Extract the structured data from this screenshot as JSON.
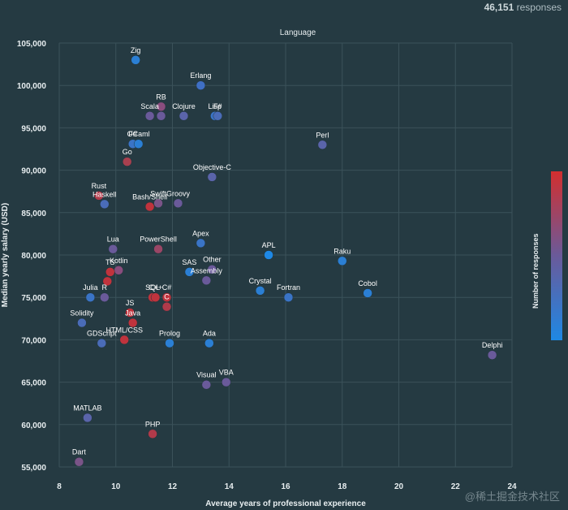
{
  "header": {
    "responses_count": "46,151",
    "responses_label": "responses"
  },
  "watermark": "@稀土掘金技术社区",
  "chart_data": {
    "type": "scatter",
    "title": "Language",
    "xlabel": "Average years of professional experience",
    "ylabel": "Median yearly salary (USD)",
    "xlim": [
      8,
      24
    ],
    "ylim": [
      55000,
      105000
    ],
    "x_ticks": [
      8,
      10,
      12,
      14,
      16,
      18,
      20,
      22,
      24
    ],
    "y_ticks": [
      55000,
      60000,
      65000,
      70000,
      75000,
      80000,
      85000,
      90000,
      95000,
      100000,
      105000
    ],
    "y_tick_labels": [
      "55,000",
      "60,000",
      "65,000",
      "70,000",
      "75,000",
      "80,000",
      "85,000",
      "90,000",
      "95,000",
      "100,000",
      "105,000"
    ],
    "grid": true,
    "colorbar": {
      "label": "Number of responses",
      "low_color": "#1e88e5",
      "high_color": "#d32f2f"
    },
    "points": [
      {
        "label": "Zig",
        "x": 10.7,
        "y": 103000,
        "color": "#2b7fd4"
      },
      {
        "label": "Erlang",
        "x": 13.0,
        "y": 100000,
        "color": "#3f6fc4"
      },
      {
        "label": "RB",
        "x": 11.6,
        "y": 97500,
        "color": "#8a4d7e"
      },
      {
        "label": "Scala",
        "x": 11.2,
        "y": 96400,
        "color": "#6a5a9a"
      },
      {
        "label": "",
        "x": 11.6,
        "y": 96400,
        "color": "#6a5a9a"
      },
      {
        "label": "Clojure",
        "x": 12.4,
        "y": 96400,
        "color": "#5a64aa"
      },
      {
        "label": "Lisp",
        "x": 13.5,
        "y": 96400,
        "color": "#3a74c6"
      },
      {
        "label": "F#",
        "x": 13.6,
        "y": 96400,
        "color": "#4a6cb8"
      },
      {
        "label": "Perl",
        "x": 17.3,
        "y": 93000,
        "color": "#5a64aa"
      },
      {
        "label": "F#",
        "x": 10.6,
        "y": 93100,
        "color": "#3a74c6"
      },
      {
        "label": "OCaml",
        "x": 10.8,
        "y": 93100,
        "color": "#2b7fd4"
      },
      {
        "label": "Go",
        "x": 10.4,
        "y": 91000,
        "color": "#a8404f"
      },
      {
        "label": "Objective-C",
        "x": 13.4,
        "y": 89200,
        "color": "#5a64aa"
      },
      {
        "label": "Rust",
        "x": 9.4,
        "y": 87000,
        "color": "#b03a4a"
      },
      {
        "label": "Haskell",
        "x": 9.6,
        "y": 86000,
        "color": "#4a6cb8"
      },
      {
        "label": "Swift",
        "x": 11.5,
        "y": 86100,
        "color": "#7a5488"
      },
      {
        "label": "Bash/Shell",
        "x": 11.2,
        "y": 85700,
        "color": "#c0333d"
      },
      {
        "label": "Groovy",
        "x": 12.2,
        "y": 86100,
        "color": "#6a5a9a"
      },
      {
        "label": "Lua",
        "x": 9.9,
        "y": 80700,
        "color": "#6a5a9a"
      },
      {
        "label": "PowerShell",
        "x": 11.5,
        "y": 80700,
        "color": "#9a4666"
      },
      {
        "label": "Apex",
        "x": 13.0,
        "y": 81400,
        "color": "#3a74c6"
      },
      {
        "label": "APL",
        "x": 15.4,
        "y": 80000,
        "color": "#1e88e5"
      },
      {
        "label": "Raku",
        "x": 18.0,
        "y": 79300,
        "color": "#2b7fd4"
      },
      {
        "label": "Kotlin",
        "x": 10.1,
        "y": 78200,
        "color": "#8a4d7e"
      },
      {
        "label": "TS",
        "x": 9.8,
        "y": 78000,
        "color": "#c0333d"
      },
      {
        "label": "SAS",
        "x": 12.6,
        "y": 78000,
        "color": "#2b7fd4"
      },
      {
        "label": "Other",
        "x": 13.4,
        "y": 78300,
        "color": "#6a5a9a"
      },
      {
        "label": "",
        "x": 9.7,
        "y": 76900,
        "color": "#c0333d"
      },
      {
        "label": "Assembly",
        "x": 13.2,
        "y": 77000,
        "color": "#6a5a9a"
      },
      {
        "label": "Crystal",
        "x": 15.1,
        "y": 75800,
        "color": "#2b7fd4"
      },
      {
        "label": "Fortran",
        "x": 16.1,
        "y": 75000,
        "color": "#3a74c6"
      },
      {
        "label": "Cobol",
        "x": 18.9,
        "y": 75500,
        "color": "#2b7fd4"
      },
      {
        "label": "Julia",
        "x": 9.1,
        "y": 75000,
        "color": "#3a74c6"
      },
      {
        "label": "R",
        "x": 9.6,
        "y": 75000,
        "color": "#6a5a9a"
      },
      {
        "label": "SQL",
        "x": 11.3,
        "y": 75000,
        "color": "#c0333d"
      },
      {
        "label": "C++",
        "x": 11.4,
        "y": 75000,
        "color": "#c0333d"
      },
      {
        "label": "C#",
        "x": 11.8,
        "y": 75000,
        "color": "#c0333d"
      },
      {
        "label": "C",
        "x": 11.8,
        "y": 73900,
        "color": "#b03a4a"
      },
      {
        "label": "JS",
        "x": 10.5,
        "y": 73200,
        "color": "#c0333d"
      },
      {
        "label": "Solidity",
        "x": 8.8,
        "y": 72000,
        "color": "#4a6cb8"
      },
      {
        "label": "Java",
        "x": 10.6,
        "y": 72000,
        "color": "#c0333d"
      },
      {
        "label": "GDScript",
        "x": 9.5,
        "y": 69600,
        "color": "#4a6cb8"
      },
      {
        "label": "HTML/CSS",
        "x": 10.3,
        "y": 70000,
        "color": "#c0333d"
      },
      {
        "label": "Prolog",
        "x": 11.9,
        "y": 69600,
        "color": "#2b7fd4"
      },
      {
        "label": "Ada",
        "x": 13.3,
        "y": 69600,
        "color": "#2b7fd4"
      },
      {
        "label": "Delphi",
        "x": 23.3,
        "y": 68200,
        "color": "#6a5a9a"
      },
      {
        "label": "Visual",
        "x": 13.2,
        "y": 64700,
        "color": "#6a5a9a"
      },
      {
        "label": "VBA",
        "x": 13.9,
        "y": 65000,
        "color": "#6a5a9a"
      },
      {
        "label": "MATLAB",
        "x": 9.0,
        "y": 60800,
        "color": "#5a64aa"
      },
      {
        "label": "PHP",
        "x": 11.3,
        "y": 58900,
        "color": "#b03a4a"
      },
      {
        "label": "Dart",
        "x": 8.7,
        "y": 55600,
        "color": "#7a5488"
      }
    ]
  }
}
